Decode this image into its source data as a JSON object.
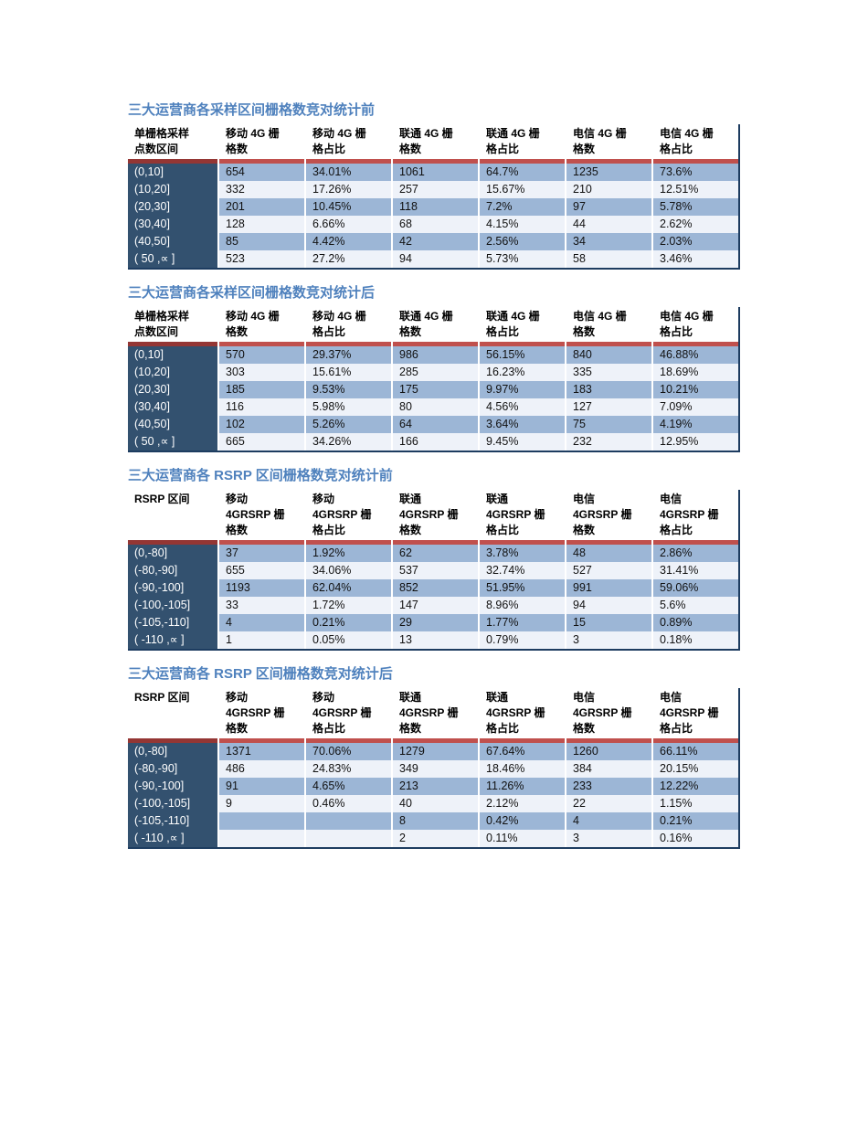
{
  "colors": {
    "title_blue": "#4f81bd",
    "red_accent_bar": "#c0504d",
    "red_accent_bar_first_col": "#943634",
    "first_column_bg": "#33516f",
    "band_dark": "#9cb6d6",
    "band_light": "#eef2f9",
    "outer_border": "#1d3c60"
  },
  "tables": [
    {
      "title": "三大运营商各采样区间栅格数竞对统计前",
      "columns": [
        "单栅格采样\n点数区间",
        "移动 4G 栅\n格数",
        "移动 4G 栅\n格占比",
        "联通 4G 栅\n格数",
        "联通 4G 栅\n格占比",
        "电信 4G 栅\n格数",
        "电信 4G 栅\n格占比"
      ],
      "rows": [
        [
          "(0,10]",
          "654",
          "34.01%",
          "1061",
          "64.7%",
          "1235",
          "73.6%"
        ],
        [
          "(10,20]",
          "332",
          "17.26%",
          "257",
          "15.67%",
          "210",
          "12.51%"
        ],
        [
          "(20,30]",
          "201",
          "10.45%",
          "118",
          "7.2%",
          "97",
          "5.78%"
        ],
        [
          "(30,40]",
          "128",
          "6.66%",
          "68",
          "4.15%",
          "44",
          "2.62%"
        ],
        [
          "(40,50]",
          "85",
          "4.42%",
          "42",
          "2.56%",
          "34",
          "2.03%"
        ],
        [
          "( 50 ,∝ ]",
          "523",
          "27.2%",
          "94",
          "5.73%",
          "58",
          "3.46%"
        ]
      ]
    },
    {
      "title": "三大运营商各采样区间栅格数竞对统计后",
      "columns": [
        "单栅格采样\n点数区间",
        "移动 4G 栅\n格数",
        "移动 4G 栅\n格占比",
        "联通 4G 栅\n格数",
        "联通 4G 栅\n格占比",
        "电信 4G 栅\n格数",
        "电信 4G 栅\n格占比"
      ],
      "rows": [
        [
          "(0,10]",
          "570",
          "29.37%",
          "986",
          "56.15%",
          "840",
          "46.88%"
        ],
        [
          "(10,20]",
          "303",
          "15.61%",
          "285",
          "16.23%",
          "335",
          "18.69%"
        ],
        [
          "(20,30]",
          "185",
          "9.53%",
          "175",
          "9.97%",
          "183",
          "10.21%"
        ],
        [
          "(30,40]",
          "116",
          "5.98%",
          "80",
          "4.56%",
          "127",
          "7.09%"
        ],
        [
          "(40,50]",
          "102",
          "5.26%",
          "64",
          "3.64%",
          "75",
          "4.19%"
        ],
        [
          "( 50 ,∝ ]",
          "665",
          "34.26%",
          "166",
          "9.45%",
          "232",
          "12.95%"
        ]
      ]
    },
    {
      "title": "三大运营商各 RSRP 区间栅格数竞对统计前",
      "columns": [
        "RSRP 区间",
        "移动\n4GRSRP 栅\n格数",
        "移动\n4GRSRP 栅\n格占比",
        "联通\n4GRSRP 栅\n格数",
        "联通\n4GRSRP 栅\n格占比",
        "电信\n4GRSRP 栅\n格数",
        "电信\n4GRSRP 栅\n格占比"
      ],
      "rows": [
        [
          "(0,-80]",
          "37",
          "1.92%",
          "62",
          "3.78%",
          "48",
          "2.86%"
        ],
        [
          "(-80,-90]",
          "655",
          "34.06%",
          "537",
          "32.74%",
          "527",
          "31.41%"
        ],
        [
          "(-90,-100]",
          "1193",
          "62.04%",
          "852",
          "51.95%",
          "991",
          "59.06%"
        ],
        [
          "(-100,-105]",
          "33",
          "1.72%",
          "147",
          "8.96%",
          "94",
          "5.6%"
        ],
        [
          "(-105,-110]",
          "4",
          "0.21%",
          "29",
          "1.77%",
          "15",
          "0.89%"
        ],
        [
          "( -110 ,∝ ]",
          "1",
          "0.05%",
          "13",
          "0.79%",
          "3",
          "0.18%"
        ]
      ]
    },
    {
      "title": "三大运营商各 RSRP 区间栅格数竞对统计后",
      "columns": [
        "RSRP 区间",
        "移动\n4GRSRP 栅\n格数",
        "移动\n4GRSRP 栅\n格占比",
        "联通\n4GRSRP 栅\n格数",
        "联通\n4GRSRP 栅\n格占比",
        "电信\n4GRSRP 栅\n格数",
        "电信\n4GRSRP 栅\n格占比"
      ],
      "rows": [
        [
          "(0,-80]",
          "1371",
          "70.06%",
          "1279",
          "67.64%",
          "1260",
          "66.11%"
        ],
        [
          "(-80,-90]",
          "486",
          "24.83%",
          "349",
          "18.46%",
          "384",
          "20.15%"
        ],
        [
          "(-90,-100]",
          "91",
          "4.65%",
          "213",
          "11.26%",
          "233",
          "12.22%"
        ],
        [
          "(-100,-105]",
          "9",
          "0.46%",
          "40",
          "2.12%",
          "22",
          "1.15%"
        ],
        [
          "(-105,-110]",
          "",
          "",
          "8",
          "0.42%",
          "4",
          "0.21%"
        ],
        [
          "( -110 ,∝ ]",
          "",
          "",
          "2",
          "0.11%",
          "3",
          "0.16%"
        ]
      ]
    }
  ]
}
